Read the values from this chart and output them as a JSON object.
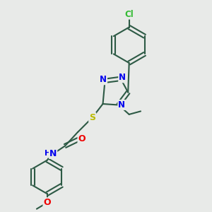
{
  "background_color": "#e8eae8",
  "bond_color": "#2d5a45",
  "bond_width": 1.5,
  "atom_colors": {
    "N": "#0000ee",
    "O": "#ee0000",
    "S": "#bbbb00",
    "Cl": "#33bb33",
    "C": "#2d5a45"
  },
  "font_size": 8.5
}
